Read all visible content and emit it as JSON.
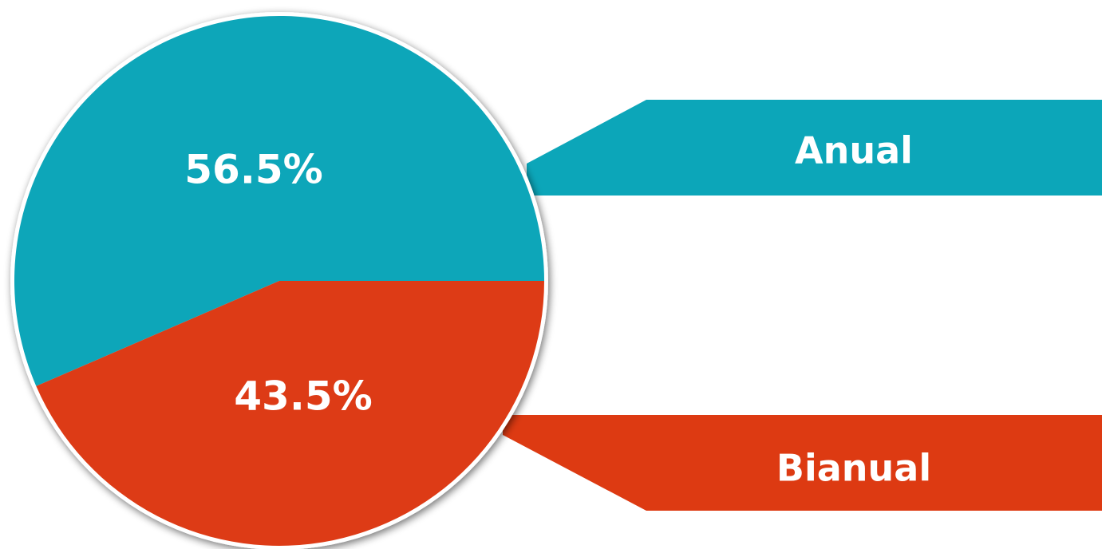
{
  "chart_data": {
    "type": "pie",
    "slices": [
      {
        "label": "Anual",
        "value": 56.5,
        "value_label": "56.5%",
        "color": "#0CA6B9"
      },
      {
        "label": "Bianual",
        "value": 43.5,
        "value_label": "43.5%",
        "color": "#DD3A12"
      }
    ],
    "legend_placement": "right"
  }
}
